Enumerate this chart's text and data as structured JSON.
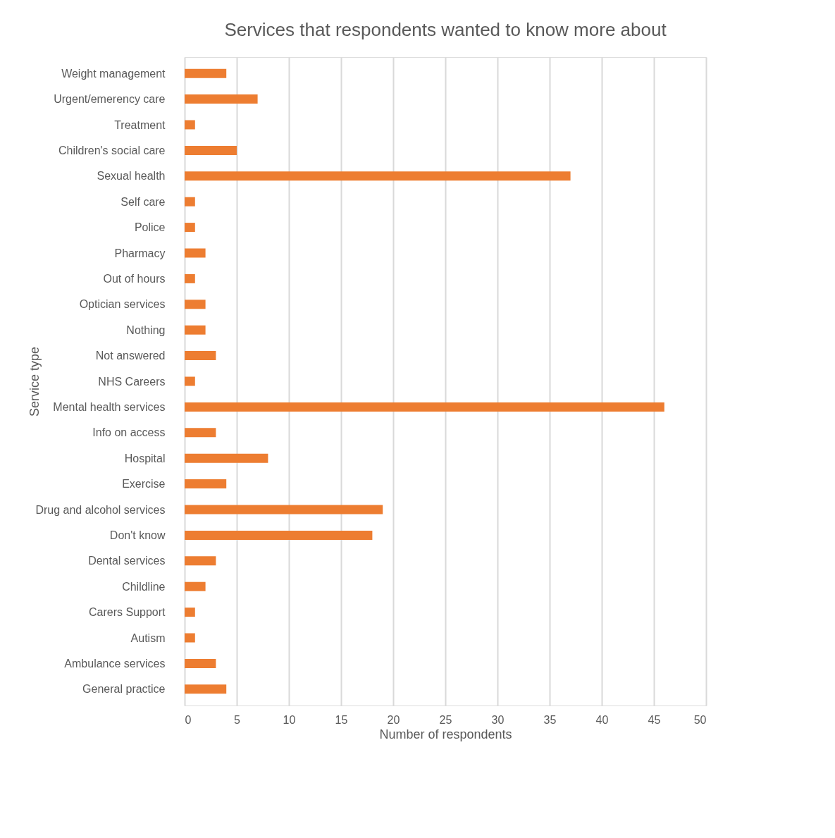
{
  "chart_data": {
    "type": "bar",
    "orientation": "horizontal",
    "title": "Services that respondents wanted to know more about",
    "xlabel": "Number of respondents",
    "ylabel": "Service type",
    "categories": [
      "Weight management",
      "Urgent/emerency care",
      "Treatment",
      "Children's social care",
      "Sexual health",
      "Self care",
      "Police",
      "Pharmacy",
      "Out of hours",
      "Optician services",
      "Nothing",
      "Not answered",
      "NHS Careers",
      "Mental health services",
      "Info on access",
      "Hospital",
      "Exercise",
      "Drug and alcohol services",
      "Don't know",
      "Dental services",
      "Childline",
      "Carers Support",
      "Autism",
      "Ambulance services",
      "General practice"
    ],
    "values": [
      4,
      7,
      1,
      5,
      37,
      1,
      1,
      2,
      1,
      2,
      2,
      3,
      1,
      46,
      3,
      8,
      4,
      19,
      18,
      3,
      2,
      1,
      1,
      3,
      4
    ],
    "color": "#ed7d31",
    "xlim": [
      0,
      50
    ],
    "xticks": [
      0,
      5,
      10,
      15,
      20,
      25,
      30,
      35,
      40,
      45,
      50
    ],
    "grid": "x"
  }
}
